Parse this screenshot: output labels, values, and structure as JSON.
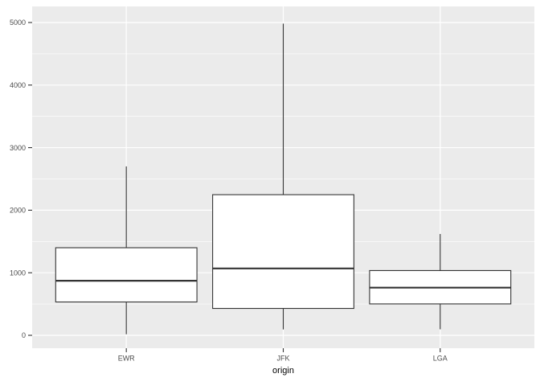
{
  "chart_data": {
    "type": "boxplot",
    "title": "",
    "xlabel": "origin",
    "ylabel": "",
    "categories": [
      "EWR",
      "JFK",
      "LGA"
    ],
    "series": [
      {
        "name": "EWR",
        "whisker_low": 17,
        "q1": 533,
        "median": 872,
        "q3": 1400,
        "whisker_high": 2700
      },
      {
        "name": "JFK",
        "whisker_low": 94,
        "q1": 430,
        "median": 1069,
        "q3": 2248,
        "whisker_high": 4983
      },
      {
        "name": "LGA",
        "whisker_low": 96,
        "q1": 502,
        "median": 762,
        "q3": 1035,
        "whisker_high": 1620
      }
    ],
    "y_ticks": [
      0,
      1000,
      2000,
      3000,
      4000,
      5000
    ],
    "y_minor_ticks": [
      500,
      1500,
      2500,
      3500,
      4500
    ],
    "ylim": [
      -206,
      5257
    ],
    "grid": true,
    "legend": false,
    "colors": {
      "page_bg": "#FFFFFF",
      "panel_bg": "#EBEBEB",
      "grid_major": "#FFFFFF",
      "grid_minor": "#FFFFFF",
      "box_stroke": "#333333",
      "box_fill": "#FFFFFF",
      "tick": "#333333",
      "axis_text": "#4D4D4D",
      "axis_title": "#000000"
    }
  }
}
